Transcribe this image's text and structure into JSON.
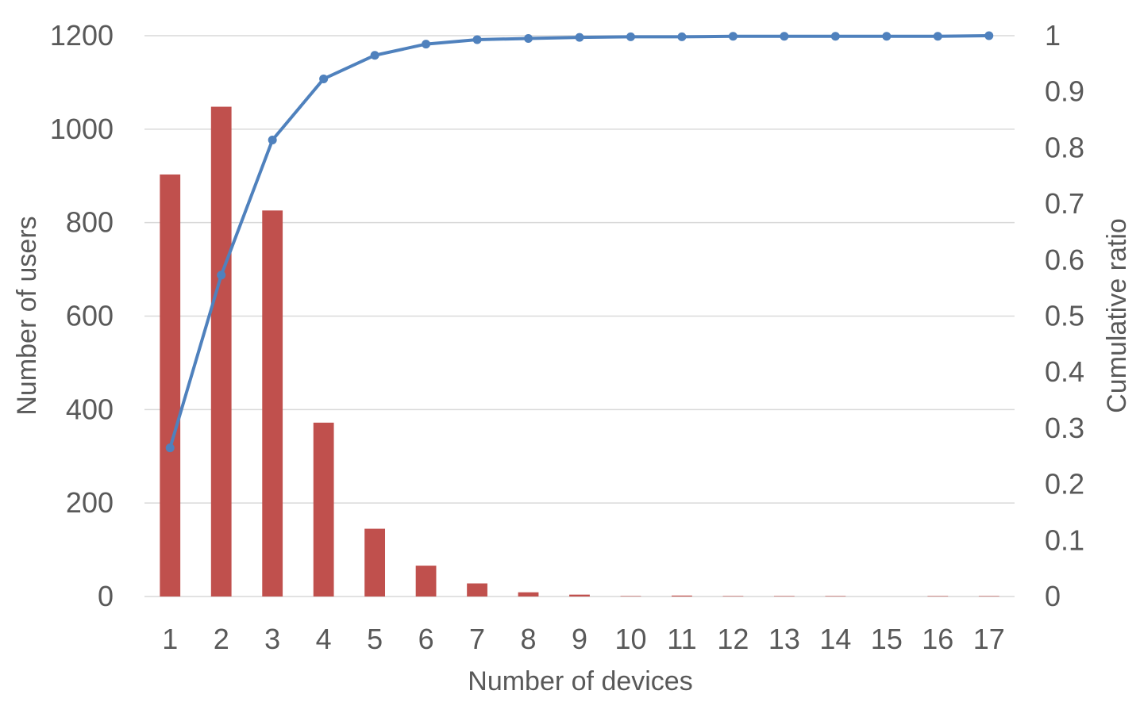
{
  "chart_data": {
    "type": "bar",
    "categories": [
      "1",
      "2",
      "3",
      "4",
      "5",
      "6",
      "7",
      "8",
      "9",
      "10",
      "11",
      "12",
      "13",
      "14",
      "15",
      "16",
      "17"
    ],
    "series": [
      {
        "type": "bar",
        "axis": "left",
        "color": "#c0504d",
        "values": [
          903,
          1048,
          826,
          372,
          145,
          66,
          28,
          9,
          4,
          1,
          2,
          1,
          1,
          1,
          0,
          1,
          1
        ]
      },
      {
        "type": "line",
        "axis": "right",
        "color": "#4f81bd",
        "values": [
          0.265,
          0.573,
          0.814,
          0.923,
          0.965,
          0.985,
          0.993,
          0.995,
          0.997,
          0.998,
          0.998,
          0.999,
          0.999,
          0.999,
          0.999,
          0.999,
          1.0
        ]
      }
    ],
    "xlabel": "Number of devices",
    "ylabel": "Number of users",
    "y2label": "Cumulative ratio",
    "ylim": [
      0,
      1200
    ],
    "yticks": [
      "0",
      "200",
      "400",
      "600",
      "800",
      "1000",
      "1200"
    ],
    "y2lim": [
      0,
      1
    ],
    "y2ticks": [
      "0",
      "0.1",
      "0.2",
      "0.3",
      "0.4",
      "0.5",
      "0.6",
      "0.7",
      "0.8",
      "0.9",
      "1"
    ],
    "grid": true,
    "legend": "none"
  }
}
